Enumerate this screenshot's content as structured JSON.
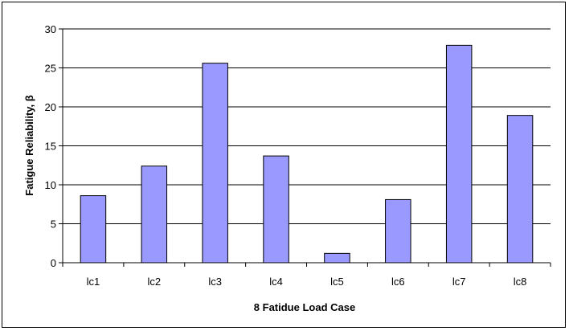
{
  "chart_data": {
    "type": "bar",
    "categories": [
      "lc1",
      "lc2",
      "lc3",
      "lc4",
      "lc5",
      "lc6",
      "lc7",
      "lc8"
    ],
    "values": [
      8.6,
      12.4,
      25.6,
      13.7,
      1.2,
      8.1,
      27.9,
      18.9
    ],
    "title": "",
    "xlabel": "8 Fatidue Load Case",
    "ylabel": "Fatigue Reliability, β",
    "ylim": [
      0,
      30
    ],
    "yticks": [
      0,
      5,
      10,
      15,
      20,
      25,
      30
    ],
    "grid": true,
    "legend": "none",
    "colors": {
      "bar_fill": "#9999ff",
      "bar_stroke": "#000000",
      "grid": "#000000",
      "background": "#ffffff"
    }
  }
}
